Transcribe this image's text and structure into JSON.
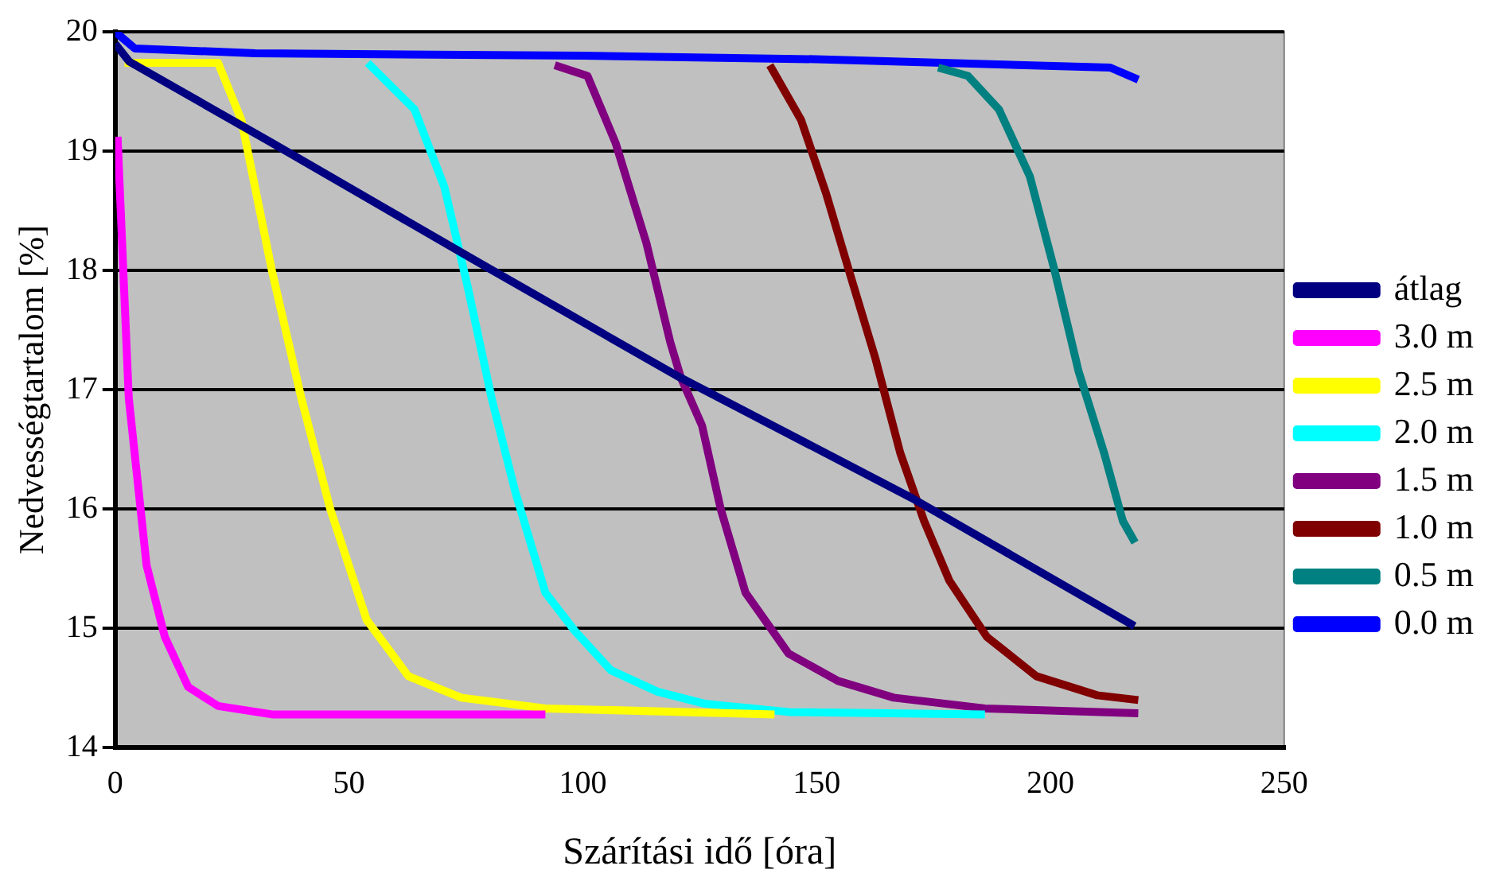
{
  "chart_data": {
    "type": "line",
    "xlabel": "Szárítási idő [óra]",
    "ylabel": "Nedvességtartalom [%]",
    "xlim": [
      0,
      250
    ],
    "xticks": [
      0,
      50,
      100,
      150,
      200,
      250
    ],
    "ylim": [
      14,
      20
    ],
    "yticks": [
      14,
      15,
      16,
      17,
      18,
      19,
      20
    ],
    "grid": "y",
    "legend": "right",
    "marker": "none",
    "line_style": "solid",
    "series": [
      {
        "name": "átlag",
        "color": "#000080",
        "x": [
          0,
          3,
          33.5,
          76.7,
          120,
          170.5,
          218
        ],
        "values": [
          19.9,
          19.75,
          19.07,
          18.09,
          17.12,
          16.09,
          15.02
        ]
      },
      {
        "name": "3.0 m",
        "color": "#ff00ff",
        "x": [
          0.5,
          2.9,
          6.7,
          10.6,
          15.6,
          22,
          33.5,
          92
        ],
        "values": [
          19.12,
          16.93,
          15.53,
          14.93,
          14.51,
          14.35,
          14.28,
          14.28
        ]
      },
      {
        "name": "2.5 m",
        "color": "#ffff00",
        "x": [
          2,
          22,
          27,
          33.5,
          39.8,
          46,
          53.8,
          62.7,
          74,
          92,
          141
        ],
        "values": [
          19.74,
          19.74,
          19.26,
          18,
          16.93,
          16,
          15.07,
          14.6,
          14.42,
          14.33,
          14.28
        ]
      },
      {
        "name": "2.0 m",
        "color": "#00ffff",
        "x": [
          54,
          64,
          70.4,
          75.4,
          80.5,
          85.6,
          92,
          98.3,
          106,
          116,
          126,
          144,
          186
        ],
        "values": [
          19.74,
          19.35,
          18.7,
          17.86,
          16.93,
          16.14,
          15.3,
          14.98,
          14.65,
          14.47,
          14.37,
          14.3,
          14.28
        ]
      },
      {
        "name": "1.5 m",
        "color": "#800080",
        "x": [
          94,
          101,
          107,
          113.6,
          118.7,
          121,
          125.5,
          129.5,
          134.8,
          144,
          154.6,
          166.5,
          186,
          218.8
        ],
        "values": [
          19.72,
          19.63,
          19.07,
          18.23,
          17.4,
          17.1,
          16.7,
          16,
          15.3,
          14.79,
          14.56,
          14.42,
          14.33,
          14.29
        ]
      },
      {
        "name": "1.0 m",
        "color": "#800000",
        "x": [
          140,
          146.7,
          152,
          157.3,
          162.6,
          167.9,
          173,
          178.4,
          186.4,
          197,
          210,
          218.8
        ],
        "values": [
          19.72,
          19.26,
          18.65,
          17.95,
          17.26,
          16.47,
          15.9,
          15.4,
          14.93,
          14.6,
          14.44,
          14.4
        ]
      },
      {
        "name": "0.5 m",
        "color": "#008080",
        "x": [
          176,
          182.4,
          189,
          195.6,
          200.9,
          206,
          211.5,
          215.5,
          218.1
        ],
        "values": [
          19.7,
          19.63,
          19.35,
          18.79,
          18,
          17.16,
          16.47,
          15.9,
          15.72
        ]
      },
      {
        "name": "0.0 m",
        "color": "#0000ff",
        "x": [
          0,
          4.2,
          30,
          100,
          150,
          212.8,
          218.8
        ],
        "values": [
          20,
          19.86,
          19.82,
          19.8,
          19.77,
          19.7,
          19.6
        ]
      }
    ]
  }
}
